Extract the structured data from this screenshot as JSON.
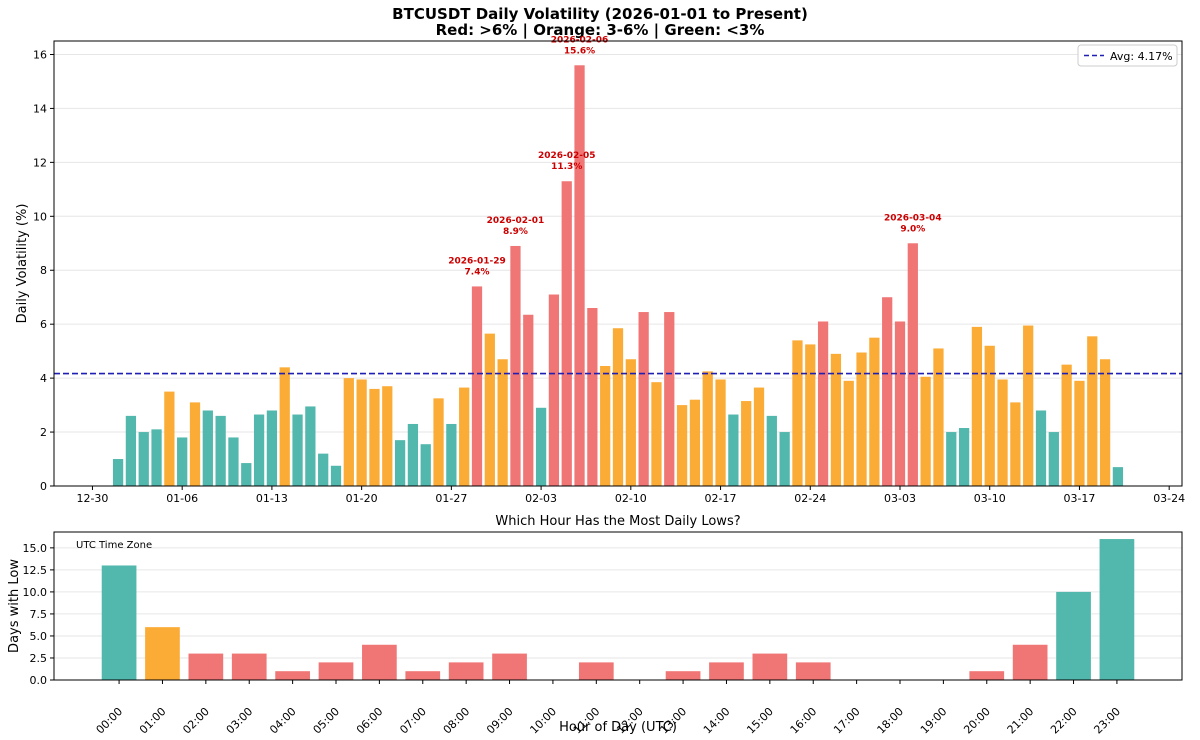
{
  "figure": {
    "title_line1": "BTCUSDT Daily Volatility (2026-01-01 to Present)",
    "title_line2": "Red: >6% | Orange: 3-6% | Green: <3%"
  },
  "colors": {
    "red": "#f07676",
    "orange": "#fbac37",
    "green": "#52b7ac",
    "avg_line": "#1f1fb4",
    "grid": "#e6e6e6",
    "annotation": "#cc0000"
  },
  "chart_data": [
    {
      "type": "bar",
      "title": "",
      "ylabel": "Daily Volatility (%)",
      "xlabel": "",
      "x_start_date": "2026-01-01",
      "xlim": [
        "2025-12-27",
        "2026-03-25"
      ],
      "ylim": [
        0,
        16.5
      ],
      "yticks": [
        0,
        2,
        4,
        6,
        8,
        10,
        12,
        14,
        16
      ],
      "xticks": [
        {
          "date": "2025-12-30",
          "label": "12-30"
        },
        {
          "date": "2026-01-06",
          "label": "01-06"
        },
        {
          "date": "2026-01-13",
          "label": "01-13"
        },
        {
          "date": "2026-01-20",
          "label": "01-20"
        },
        {
          "date": "2026-01-27",
          "label": "01-27"
        },
        {
          "date": "2026-02-03",
          "label": "02-03"
        },
        {
          "date": "2026-02-10",
          "label": "02-10"
        },
        {
          "date": "2026-02-17",
          "label": "02-17"
        },
        {
          "date": "2026-02-24",
          "label": "02-24"
        },
        {
          "date": "2026-03-03",
          "label": "03-03"
        },
        {
          "date": "2026-03-10",
          "label": "03-10"
        },
        {
          "date": "2026-03-17",
          "label": "03-17"
        },
        {
          "date": "2026-03-24",
          "label": "03-24"
        }
      ],
      "values": [
        1.0,
        2.6,
        2.0,
        2.1,
        3.5,
        1.8,
        3.1,
        2.8,
        2.6,
        1.8,
        0.85,
        2.65,
        2.8,
        4.4,
        2.65,
        2.95,
        1.2,
        0.75,
        4.0,
        3.95,
        3.6,
        3.7,
        1.7,
        2.3,
        1.55,
        3.25,
        2.3,
        3.65,
        7.4,
        5.65,
        4.7,
        8.9,
        6.35,
        2.9,
        7.1,
        11.3,
        15.6,
        6.6,
        4.45,
        5.85,
        4.7,
        6.45,
        3.85,
        6.45,
        3.0,
        3.2,
        4.25,
        3.95,
        2.65,
        3.15,
        3.65,
        2.6,
        2.0,
        5.4,
        5.25,
        6.1,
        4.9,
        3.9,
        4.95,
        5.5,
        7.0,
        6.1,
        9.0,
        4.05,
        5.1,
        2.0,
        2.15,
        5.9,
        5.2,
        3.95,
        3.1,
        5.95,
        2.8,
        2.0,
        4.5,
        3.9,
        5.55,
        4.7,
        0.7
      ],
      "thresholds": {
        "red_above": 6,
        "green_below": 3
      },
      "avg_line": {
        "value": 4.17,
        "label": "Avg: 4.17%"
      },
      "legend": {
        "position": "top-right",
        "entries": [
          "Avg: 4.17%"
        ]
      },
      "annotations": [
        {
          "date_index": 28,
          "date": "2026-01-29",
          "label": "7.4%"
        },
        {
          "date_index": 31,
          "date": "2026-02-01",
          "label": "8.9%"
        },
        {
          "date_index": 35,
          "date": "2026-02-05",
          "label": "11.3%"
        },
        {
          "date_index": 36,
          "date": "2026-02-06",
          "label": "15.6%"
        },
        {
          "date_index": 62,
          "date": "2026-03-04",
          "label": "9.0%"
        }
      ],
      "grid": "horizontal"
    },
    {
      "type": "bar",
      "title": "Which Hour Has the Most Daily Lows?",
      "xlabel": "Hour of Day (UTC)",
      "ylabel": "Days with Low",
      "note": "UTC Time Zone",
      "ylim": [
        0,
        16.8
      ],
      "yticks": [
        "0.0",
        "2.5",
        "5.0",
        "7.5",
        "10.0",
        "12.5",
        "15.0"
      ],
      "categories": [
        "00:00",
        "01:00",
        "02:00",
        "03:00",
        "04:00",
        "05:00",
        "06:00",
        "07:00",
        "08:00",
        "09:00",
        "10:00",
        "11:00",
        "12:00",
        "13:00",
        "14:00",
        "15:00",
        "16:00",
        "17:00",
        "18:00",
        "19:00",
        "20:00",
        "21:00",
        "22:00",
        "23:00"
      ],
      "values": [
        13,
        6,
        3,
        3,
        1,
        2,
        4,
        1,
        2,
        3,
        0,
        2,
        0,
        1,
        2,
        3,
        2,
        0,
        0,
        0,
        1,
        4,
        10,
        16
      ],
      "bar_colors": [
        "green",
        "orange",
        "red",
        "red",
        "red",
        "red",
        "red",
        "red",
        "red",
        "red",
        "red",
        "red",
        "red",
        "red",
        "red",
        "red",
        "red",
        "red",
        "red",
        "red",
        "red",
        "red",
        "green",
        "green"
      ],
      "grid": "horizontal"
    }
  ]
}
